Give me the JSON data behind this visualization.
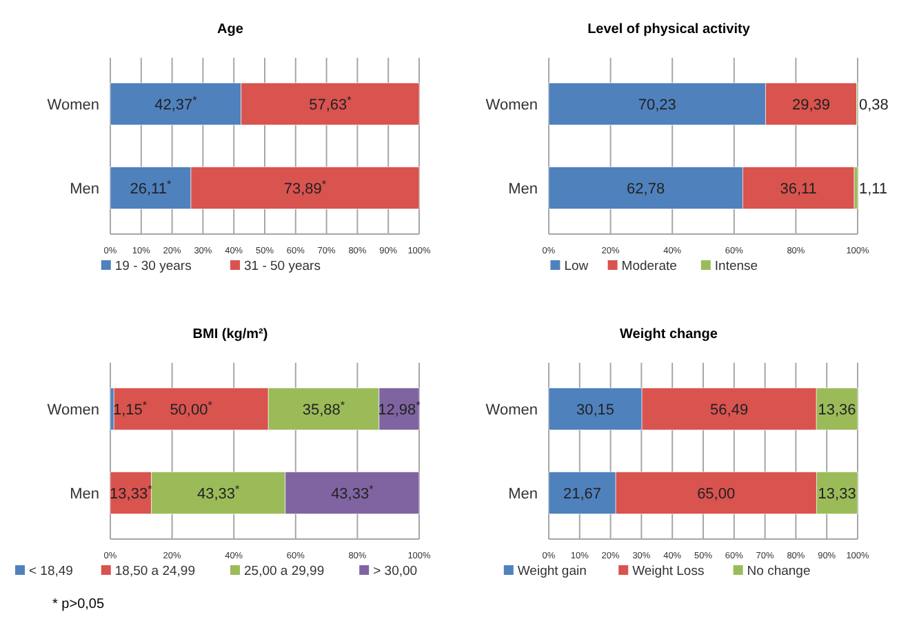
{
  "chart_data": [
    {
      "type": "bar",
      "title": "Age",
      "orientation": "horizontal",
      "stacked": true,
      "grid": "x",
      "legend": "bottom",
      "categories": [
        "Women",
        "Men"
      ],
      "xlim": [
        0,
        100
      ],
      "xticks": [
        {
          "value": 0,
          "label": "0%"
        },
        {
          "value": 10,
          "label": "10%"
        },
        {
          "value": 20,
          "label": "20%"
        },
        {
          "value": 30,
          "label": "30%"
        },
        {
          "value": 40,
          "label": "40%"
        },
        {
          "value": 50,
          "label": "50%"
        },
        {
          "value": 60,
          "label": "60%"
        },
        {
          "value": 70,
          "label": "70%"
        },
        {
          "value": 80,
          "label": "80%"
        },
        {
          "value": 90,
          "label": "90%"
        },
        {
          "value": 100,
          "label": "100%"
        }
      ],
      "series": [
        {
          "name": "19 - 30 years",
          "color": "#4f81bd",
          "values": [
            42.37,
            26.11
          ],
          "value_labels": [
            "42,37$^{*}$",
            "26,11$^{*}$"
          ]
        },
        {
          "name": "31 - 50 years",
          "color": "#d9534f",
          "values": [
            57.63,
            73.89
          ],
          "value_labels": [
            "57,63$^{*}$",
            "73,89$^{*}$"
          ]
        }
      ]
    },
    {
      "type": "bar",
      "title": "Level of physical activity",
      "orientation": "horizontal",
      "stacked": true,
      "grid": "x",
      "legend": "bottom",
      "categories": [
        "Women",
        "Men"
      ],
      "xlim": [
        0,
        100
      ],
      "xticks": [
        {
          "value": 0,
          "label": "0%"
        },
        {
          "value": 20,
          "label": "20%"
        },
        {
          "value": 40,
          "label": "40%"
        },
        {
          "value": 60,
          "label": "60%"
        },
        {
          "value": 80,
          "label": "80%"
        },
        {
          "value": 100,
          "label": "100%"
        }
      ],
      "series": [
        {
          "name": "Low",
          "color": "#4f81bd",
          "values": [
            70.23,
            62.78
          ],
          "value_labels": [
            "70,23",
            "62,78"
          ]
        },
        {
          "name": "Moderate",
          "color": "#d9534f",
          "values": [
            29.39,
            36.11
          ],
          "value_labels": [
            "29,39",
            "36,11"
          ]
        },
        {
          "name": "Intense",
          "color": "#9bbb59",
          "values": [
            0.38,
            1.11
          ],
          "value_labels": [
            "0,38",
            "1,11"
          ]
        }
      ]
    },
    {
      "type": "bar",
      "title": "BMI (kg/m²)",
      "orientation": "horizontal",
      "stacked": true,
      "grid": "x",
      "legend": "bottom",
      "categories": [
        "Women",
        "Men"
      ],
      "xlim": [
        0,
        100
      ],
      "xticks": [
        {
          "value": 0,
          "label": "0%"
        },
        {
          "value": 20,
          "label": "20%"
        },
        {
          "value": 40,
          "label": "40%"
        },
        {
          "value": 60,
          "label": "60%"
        },
        {
          "value": 80,
          "label": "80%"
        },
        {
          "value": 100,
          "label": "100%"
        }
      ],
      "annotations": [
        "* p>0,05"
      ],
      "series": [
        {
          "name": "< 18,49",
          "color": "#4f81bd",
          "values": [
            1.15,
            0
          ],
          "value_labels": [
            "1,15$^{*}$",
            null
          ]
        },
        {
          "name": "18,50 a 24,99",
          "color": "#d9534f",
          "values": [
            50.0,
            13.33
          ],
          "value_labels": [
            "50,00$^{*}$",
            "13,33$^{*}$"
          ]
        },
        {
          "name": "25,00 a 29,99",
          "color": "#9bbb59",
          "values": [
            35.88,
            43.33
          ],
          "value_labels": [
            "35,88$^{*}$",
            "43,33$^{*}$"
          ]
        },
        {
          "name": "> 30,00",
          "color": "#8064a2",
          "values": [
            12.98,
            43.33
          ],
          "value_labels": [
            "12,98$^{*}$",
            "43,33$^{*}$"
          ]
        }
      ]
    },
    {
      "type": "bar",
      "title": "Weight change",
      "orientation": "horizontal",
      "stacked": true,
      "grid": "x",
      "legend": "bottom",
      "categories": [
        "Women",
        "Men"
      ],
      "xlim": [
        0,
        100
      ],
      "xticks": [
        {
          "value": 0,
          "label": "0%"
        },
        {
          "value": 10,
          "label": "10%"
        },
        {
          "value": 20,
          "label": "20%"
        },
        {
          "value": 30,
          "label": "30%"
        },
        {
          "value": 40,
          "label": "40%"
        },
        {
          "value": 50,
          "label": "50%"
        },
        {
          "value": 60,
          "label": "60%"
        },
        {
          "value": 70,
          "label": "70%"
        },
        {
          "value": 80,
          "label": "80%"
        },
        {
          "value": 90,
          "label": "90%"
        },
        {
          "value": 100,
          "label": "100%"
        }
      ],
      "series": [
        {
          "name": "Weight gain",
          "color": "#4f81bd",
          "values": [
            30.15,
            21.67
          ],
          "value_labels": [
            "30,15",
            "21,67"
          ]
        },
        {
          "name": "Weight Loss",
          "color": "#d9534f",
          "values": [
            56.49,
            65.0
          ],
          "value_labels": [
            "56,49",
            "65,00"
          ]
        },
        {
          "name": "No change",
          "color": "#9bbb59",
          "values": [
            13.36,
            13.33
          ],
          "value_labels": [
            "13,36",
            "13,33"
          ]
        }
      ]
    }
  ]
}
